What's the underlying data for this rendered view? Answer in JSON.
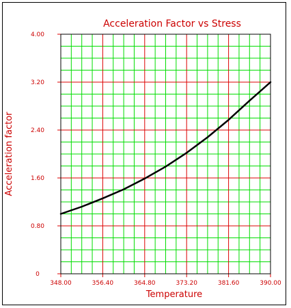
{
  "chart_data": {
    "type": "line",
    "title": "Acceleration Factor vs Stress",
    "xlabel": "Temperature",
    "ylabel": "Acceleration factor",
    "xlim": [
      348.0,
      390.0
    ],
    "ylim": [
      0,
      4.0
    ],
    "x_ticks": [
      "348.00",
      "356.40",
      "364.80",
      "373.20",
      "381.60",
      "390.00"
    ],
    "y_ticks": [
      "0",
      "0.80",
      "1.60",
      "2.40",
      "3.20",
      "4.00"
    ],
    "grid": true,
    "series": [
      {
        "x": [
          348.0,
          352.2,
          356.4,
          360.6,
          364.8,
          369.0,
          373.2,
          377.4,
          381.6,
          385.8,
          390.0
        ],
        "values": [
          1.0,
          1.12,
          1.26,
          1.41,
          1.59,
          1.79,
          2.02,
          2.28,
          2.57,
          2.89,
          3.2
        ]
      }
    ]
  },
  "colors": {
    "text": "#cc0000",
    "major_grid": "#dd0000",
    "minor_grid": "#00dd00",
    "line": "#000000"
  }
}
